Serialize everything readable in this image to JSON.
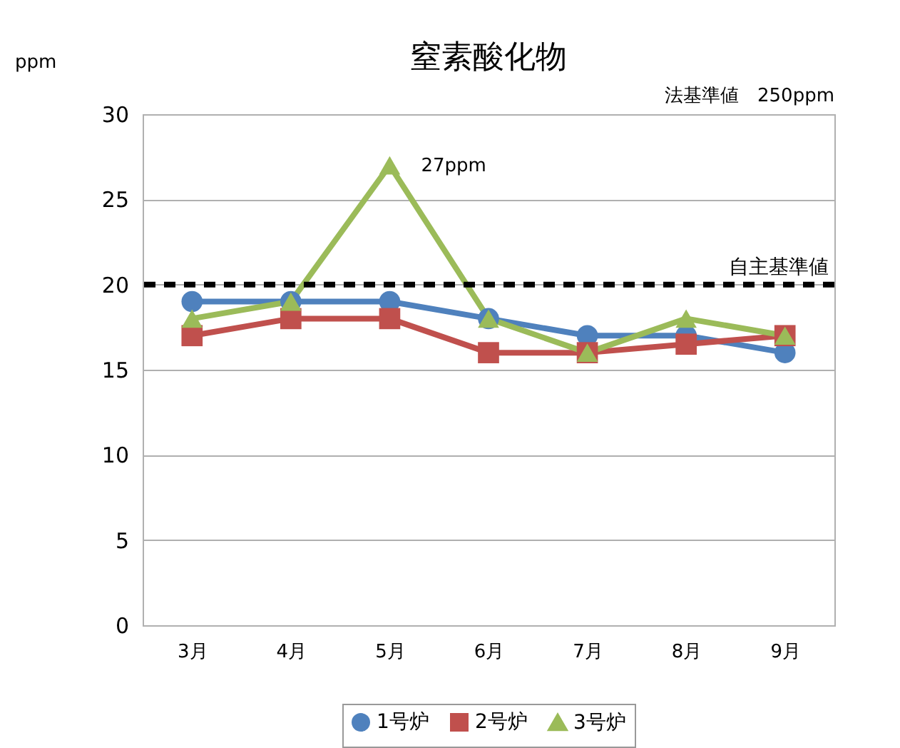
{
  "chart_data": {
    "type": "line",
    "title": "窒素酸化物",
    "ylabel": "ppm",
    "categories": [
      "3月",
      "4月",
      "5月",
      "6月",
      "7月",
      "8月",
      "9月"
    ],
    "series": [
      {
        "name": "1号炉",
        "color": "#4f81bd",
        "marker": "circle",
        "values": [
          19,
          19,
          19,
          18,
          17,
          17,
          16
        ]
      },
      {
        "name": "2号炉",
        "color": "#c0504d",
        "marker": "square",
        "values": [
          17,
          18,
          18,
          16,
          16,
          16.5,
          17
        ]
      },
      {
        "name": "3号炉",
        "color": "#9bbb59",
        "marker": "triangle",
        "values": [
          18,
          19,
          27,
          18,
          16,
          18,
          17
        ]
      }
    ],
    "ylim": [
      0,
      30
    ],
    "yticks": [
      0,
      5,
      10,
      15,
      20,
      25,
      30
    ],
    "grid": "y",
    "legend": "bottom",
    "ref_lines": [
      {
        "axis": "y",
        "value": 20,
        "label": "自主基準値",
        "color": "#000000",
        "line_style": "dashed"
      }
    ],
    "annotations": [
      "法基準値　250ppm",
      {
        "text": "27ppm",
        "x": "5月",
        "y": 27
      }
    ]
  }
}
